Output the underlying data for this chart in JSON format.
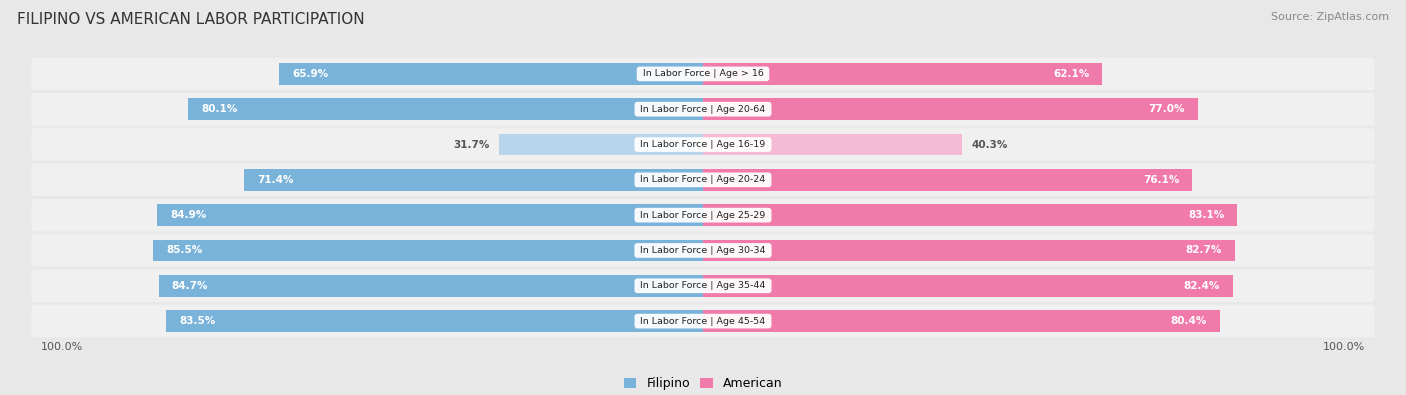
{
  "title": "FILIPINO VS AMERICAN LABOR PARTICIPATION",
  "source": "Source: ZipAtlas.com",
  "categories": [
    "In Labor Force | Age > 16",
    "In Labor Force | Age 20-64",
    "In Labor Force | Age 16-19",
    "In Labor Force | Age 20-24",
    "In Labor Force | Age 25-29",
    "In Labor Force | Age 30-34",
    "In Labor Force | Age 35-44",
    "In Labor Force | Age 45-54"
  ],
  "filipino_values": [
    65.9,
    80.1,
    31.7,
    71.4,
    84.9,
    85.5,
    84.7,
    83.5
  ],
  "american_values": [
    62.1,
    77.0,
    40.3,
    76.1,
    83.1,
    82.7,
    82.4,
    80.4
  ],
  "filipino_color": "#7ab3d9",
  "filipino_color_light": "#b8d5ec",
  "american_color": "#f07aaa",
  "american_color_light": "#f5bbd4",
  "label_color_dark": "#555555",
  "bg_color": "#e8e8e8",
  "row_bg_even": "#f5f5f5",
  "row_bg_odd": "#ebebeb",
  "max_val": 100.0,
  "title_fontsize": 11,
  "source_fontsize": 8,
  "bar_height": 0.62,
  "legend_labels": [
    "Filipino",
    "American"
  ]
}
